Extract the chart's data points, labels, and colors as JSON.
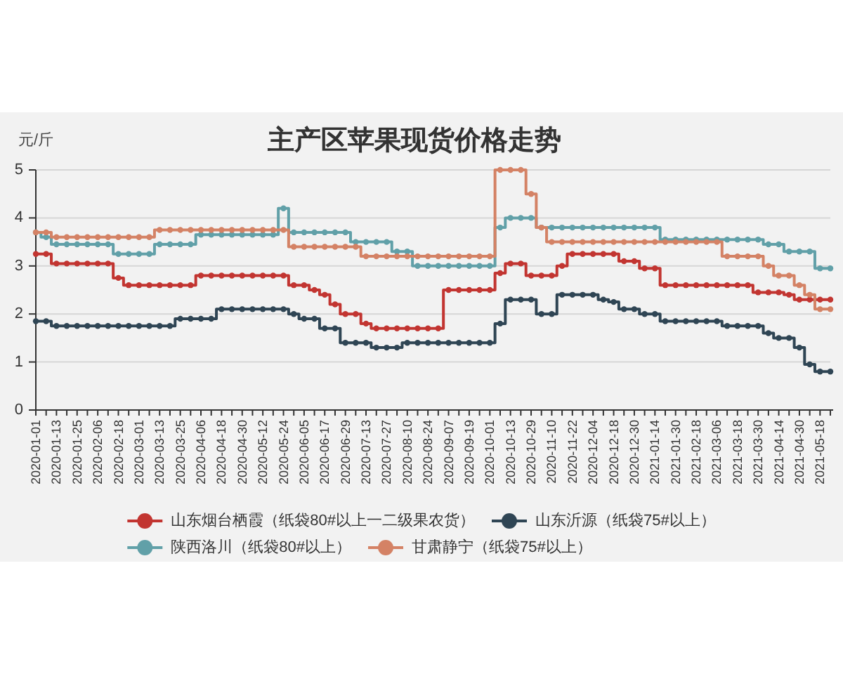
{
  "chart_data": {
    "type": "step",
    "title": "主产区苹果现货价格走势",
    "ylabel": "元/斤",
    "categories": [
      "2020-01-01",
      null,
      "2020-01-13",
      null,
      "2020-01-25",
      null,
      "2020-02-06",
      null,
      "2020-02-18",
      null,
      "2020-03-01",
      null,
      "2020-03-13",
      null,
      "2020-03-25",
      null,
      "2020-04-06",
      null,
      "2020-04-18",
      null,
      "2020-04-30",
      null,
      "2020-05-12",
      null,
      "2020-05-24",
      null,
      "2020-06-05",
      null,
      "2020-06-17",
      null,
      "2020-06-29",
      null,
      "2020-07-13",
      null,
      "2020-07-27",
      null,
      "2020-08-10",
      null,
      "2020-08-24",
      null,
      "2020-09-07",
      null,
      "2020-09-19",
      null,
      "2020-10-01",
      null,
      "2020-10-13",
      null,
      "2020-10-29",
      null,
      "2020-11-10",
      null,
      "2020-11-22",
      null,
      "2020-12-04",
      null,
      "2020-12-18",
      null,
      "2020-12-30",
      null,
      "2021-01-14",
      null,
      "2021-01-30",
      null,
      "2021-02-18",
      null,
      "2021-03-06",
      null,
      "2021-03-18",
      null,
      "2021-03-30",
      null,
      "2021-04-14",
      null,
      "2021-04-30",
      null,
      "2021-05-18",
      null
    ],
    "series": [
      {
        "name": "山东烟台栖霞（纸袋80#以上一二级果农货）",
        "color": "#c23531",
        "values": [
          3.25,
          3.25,
          3.05,
          3.05,
          3.05,
          3.05,
          3.05,
          3.05,
          2.75,
          2.6,
          2.6,
          2.6,
          2.6,
          2.6,
          2.6,
          2.6,
          2.8,
          2.8,
          2.8,
          2.8,
          2.8,
          2.8,
          2.8,
          2.8,
          2.8,
          2.6,
          2.6,
          2.5,
          2.4,
          2.2,
          2.0,
          2.0,
          1.8,
          1.7,
          1.7,
          1.7,
          1.7,
          1.7,
          1.7,
          1.7,
          2.5,
          2.5,
          2.5,
          2.5,
          2.5,
          2.85,
          3.05,
          3.05,
          2.8,
          2.8,
          2.8,
          3.0,
          3.25,
          3.25,
          3.25,
          3.25,
          3.25,
          3.1,
          3.1,
          2.95,
          2.95,
          2.6,
          2.6,
          2.6,
          2.6,
          2.6,
          2.6,
          2.6,
          2.6,
          2.6,
          2.45,
          2.45,
          2.45,
          2.4,
          2.3,
          2.3,
          2.3,
          2.3
        ]
      },
      {
        "name": "山东沂源（纸袋75#以上）",
        "color": "#2f4554",
        "values": [
          1.85,
          1.85,
          1.75,
          1.75,
          1.75,
          1.75,
          1.75,
          1.75,
          1.75,
          1.75,
          1.75,
          1.75,
          1.75,
          1.75,
          1.9,
          1.9,
          1.9,
          1.9,
          2.1,
          2.1,
          2.1,
          2.1,
          2.1,
          2.1,
          2.1,
          2.0,
          1.9,
          1.9,
          1.7,
          1.7,
          1.4,
          1.4,
          1.4,
          1.3,
          1.3,
          1.3,
          1.4,
          1.4,
          1.4,
          1.4,
          1.4,
          1.4,
          1.4,
          1.4,
          1.4,
          1.8,
          2.3,
          2.3,
          2.3,
          2.0,
          2.0,
          2.4,
          2.4,
          2.4,
          2.4,
          2.3,
          2.25,
          2.1,
          2.1,
          2.0,
          2.0,
          1.85,
          1.85,
          1.85,
          1.85,
          1.85,
          1.85,
          1.75,
          1.75,
          1.75,
          1.75,
          1.6,
          1.5,
          1.5,
          1.3,
          0.95,
          0.8,
          0.8
        ]
      },
      {
        "name": "陕西洛川（纸袋80#以上）",
        "color": "#61a0a8",
        "values": [
          3.7,
          3.6,
          3.45,
          3.45,
          3.45,
          3.45,
          3.45,
          3.45,
          3.25,
          3.25,
          3.25,
          3.25,
          3.45,
          3.45,
          3.45,
          3.45,
          3.65,
          3.65,
          3.65,
          3.65,
          3.65,
          3.65,
          3.65,
          3.65,
          4.2,
          3.7,
          3.7,
          3.7,
          3.7,
          3.7,
          3.7,
          3.5,
          3.5,
          3.5,
          3.5,
          3.3,
          3.3,
          3.0,
          3.0,
          3.0,
          3.0,
          3.0,
          3.0,
          3.0,
          3.0,
          3.8,
          4.0,
          4.0,
          4.0,
          3.8,
          3.8,
          3.8,
          3.8,
          3.8,
          3.8,
          3.8,
          3.8,
          3.8,
          3.8,
          3.8,
          3.8,
          3.55,
          3.55,
          3.55,
          3.55,
          3.55,
          3.55,
          3.55,
          3.55,
          3.55,
          3.55,
          3.45,
          3.45,
          3.3,
          3.3,
          3.3,
          2.95,
          2.95
        ]
      },
      {
        "name": "甘肃静宁（纸袋75#以上）",
        "color": "#d48265",
        "values": [
          3.7,
          3.7,
          3.6,
          3.6,
          3.6,
          3.6,
          3.6,
          3.6,
          3.6,
          3.6,
          3.6,
          3.6,
          3.75,
          3.75,
          3.75,
          3.75,
          3.75,
          3.75,
          3.75,
          3.75,
          3.75,
          3.75,
          3.75,
          3.75,
          3.75,
          3.4,
          3.4,
          3.4,
          3.4,
          3.4,
          3.4,
          3.4,
          3.2,
          3.2,
          3.2,
          3.2,
          3.2,
          3.2,
          3.2,
          3.2,
          3.2,
          3.2,
          3.2,
          3.2,
          3.2,
          5.0,
          5.0,
          5.0,
          4.5,
          3.8,
          3.5,
          3.5,
          3.5,
          3.5,
          3.5,
          3.5,
          3.5,
          3.5,
          3.5,
          3.5,
          3.5,
          3.5,
          3.5,
          3.5,
          3.5,
          3.5,
          3.5,
          3.2,
          3.2,
          3.2,
          3.2,
          3.0,
          2.8,
          2.8,
          2.6,
          2.4,
          2.1,
          2.1
        ]
      }
    ],
    "ylim": [
      0,
      5
    ],
    "yticks": [
      0,
      1,
      2,
      3,
      4,
      5
    ],
    "grid": "y",
    "legend": "bottom",
    "marker": "circle"
  }
}
